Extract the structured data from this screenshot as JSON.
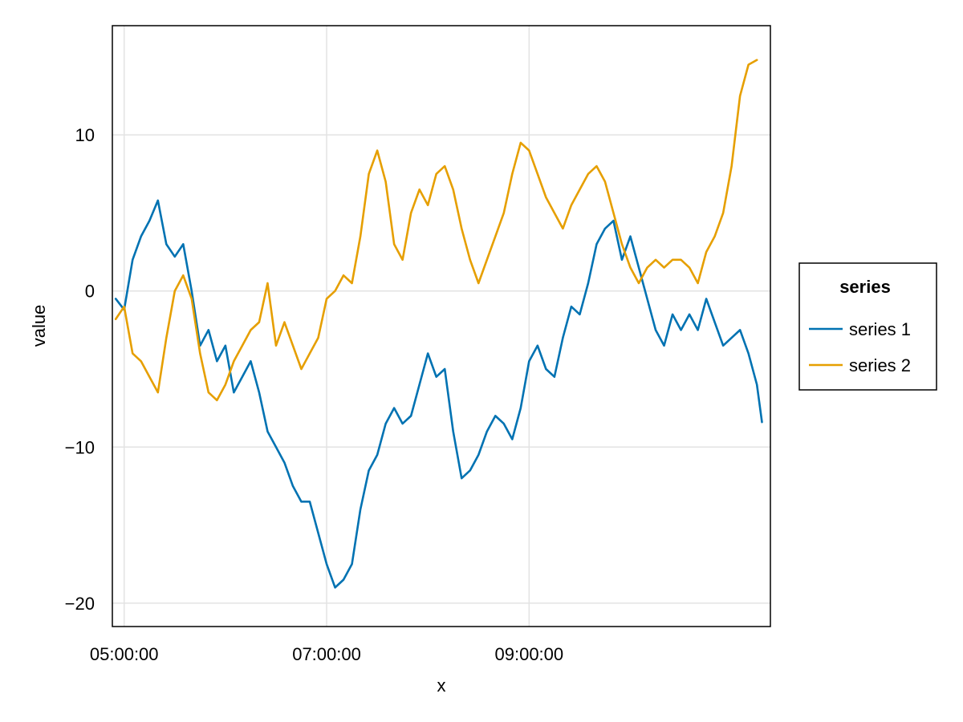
{
  "chart_data": {
    "type": "line",
    "x_type": "time",
    "xlabel": "x",
    "ylabel": "value",
    "xlim": [
      "04:53:00",
      "11:23:00"
    ],
    "ylim": [
      -21.5,
      17
    ],
    "xticks": [
      "05:00:00",
      "07:00:00",
      "09:00:00"
    ],
    "yticks": [
      10,
      0,
      -10,
      -20
    ],
    "ytick_labels": [
      "10",
      "0",
      "−10",
      "−20"
    ],
    "grid": true,
    "legend": {
      "title": "series",
      "position": "right"
    },
    "series": [
      {
        "name": "series 1",
        "color": "#0072b2",
        "points": [
          [
            "04:55:00",
            -0.5
          ],
          [
            "05:00:00",
            -1.2
          ],
          [
            "05:05:00",
            2.0
          ],
          [
            "05:10:00",
            3.5
          ],
          [
            "05:15:00",
            4.5
          ],
          [
            "05:20:00",
            5.8
          ],
          [
            "05:25:00",
            3.0
          ],
          [
            "05:30:00",
            2.2
          ],
          [
            "05:35:00",
            3.0
          ],
          [
            "05:40:00",
            0.0
          ],
          [
            "05:45:00",
            -3.5
          ],
          [
            "05:50:00",
            -2.5
          ],
          [
            "05:55:00",
            -4.5
          ],
          [
            "06:00:00",
            -3.5
          ],
          [
            "06:05:00",
            -6.5
          ],
          [
            "06:10:00",
            -5.5
          ],
          [
            "06:15:00",
            -4.5
          ],
          [
            "06:20:00",
            -6.5
          ],
          [
            "06:25:00",
            -9.0
          ],
          [
            "06:30:00",
            -10.0
          ],
          [
            "06:35:00",
            -11.0
          ],
          [
            "06:40:00",
            -12.5
          ],
          [
            "06:45:00",
            -13.5
          ],
          [
            "06:50:00",
            -13.5
          ],
          [
            "06:55:00",
            -15.5
          ],
          [
            "07:00:00",
            -17.5
          ],
          [
            "07:05:00",
            -19.0
          ],
          [
            "07:10:00",
            -18.5
          ],
          [
            "07:15:00",
            -17.5
          ],
          [
            "07:20:00",
            -14.0
          ],
          [
            "07:25:00",
            -11.5
          ],
          [
            "07:30:00",
            -10.5
          ],
          [
            "07:35:00",
            -8.5
          ],
          [
            "07:40:00",
            -7.5
          ],
          [
            "07:45:00",
            -8.5
          ],
          [
            "07:50:00",
            -8.0
          ],
          [
            "07:55:00",
            -6.0
          ],
          [
            "08:00:00",
            -4.0
          ],
          [
            "08:05:00",
            -5.5
          ],
          [
            "08:10:00",
            -5.0
          ],
          [
            "08:15:00",
            -9.0
          ],
          [
            "08:20:00",
            -12.0
          ],
          [
            "08:25:00",
            -11.5
          ],
          [
            "08:30:00",
            -10.5
          ],
          [
            "08:35:00",
            -9.0
          ],
          [
            "08:40:00",
            -8.0
          ],
          [
            "08:45:00",
            -8.5
          ],
          [
            "08:50:00",
            -9.5
          ],
          [
            "08:55:00",
            -7.5
          ],
          [
            "09:00:00",
            -4.5
          ],
          [
            "09:05:00",
            -3.5
          ],
          [
            "09:10:00",
            -5.0
          ],
          [
            "09:15:00",
            -5.5
          ],
          [
            "09:20:00",
            -3.0
          ],
          [
            "09:25:00",
            -1.0
          ],
          [
            "09:30:00",
            -1.5
          ],
          [
            "09:35:00",
            0.5
          ],
          [
            "09:40:00",
            3.0
          ],
          [
            "09:45:00",
            4.0
          ],
          [
            "09:50:00",
            4.5
          ],
          [
            "09:55:00",
            2.0
          ],
          [
            "10:00:00",
            3.5
          ],
          [
            "10:05:00",
            1.5
          ],
          [
            "10:10:00",
            -0.5
          ],
          [
            "10:15:00",
            -2.5
          ],
          [
            "10:20:00",
            -3.5
          ],
          [
            "10:25:00",
            -1.5
          ],
          [
            "10:30:00",
            -2.5
          ],
          [
            "10:35:00",
            -1.5
          ],
          [
            "10:40:00",
            -2.5
          ],
          [
            "10:45:00",
            -0.5
          ],
          [
            "10:50:00",
            -2.0
          ],
          [
            "10:55:00",
            -3.5
          ],
          [
            "11:00:00",
            -3.0
          ],
          [
            "11:05:00",
            -2.5
          ],
          [
            "11:10:00",
            -4.0
          ],
          [
            "11:15:00",
            -6.0
          ],
          [
            "11:18:00",
            -8.4
          ]
        ]
      },
      {
        "name": "series 2",
        "color": "#e69f00",
        "points": [
          [
            "04:55:00",
            -1.8
          ],
          [
            "05:00:00",
            -1.0
          ],
          [
            "05:05:00",
            -4.0
          ],
          [
            "05:10:00",
            -4.5
          ],
          [
            "05:15:00",
            -5.5
          ],
          [
            "05:20:00",
            -6.5
          ],
          [
            "05:25:00",
            -3.0
          ],
          [
            "05:30:00",
            0.0
          ],
          [
            "05:35:00",
            1.0
          ],
          [
            "05:40:00",
            -0.5
          ],
          [
            "05:45:00",
            -4.0
          ],
          [
            "05:50:00",
            -6.5
          ],
          [
            "05:55:00",
            -7.0
          ],
          [
            "06:00:00",
            -6.0
          ],
          [
            "06:05:00",
            -4.5
          ],
          [
            "06:10:00",
            -3.5
          ],
          [
            "06:15:00",
            -2.5
          ],
          [
            "06:20:00",
            -2.0
          ],
          [
            "06:25:00",
            0.5
          ],
          [
            "06:30:00",
            -3.5
          ],
          [
            "06:35:00",
            -2.0
          ],
          [
            "06:40:00",
            -3.5
          ],
          [
            "06:45:00",
            -5.0
          ],
          [
            "06:50:00",
            -4.0
          ],
          [
            "06:55:00",
            -3.0
          ],
          [
            "07:00:00",
            -0.5
          ],
          [
            "07:05:00",
            0.0
          ],
          [
            "07:10:00",
            1.0
          ],
          [
            "07:15:00",
            0.5
          ],
          [
            "07:20:00",
            3.5
          ],
          [
            "07:25:00",
            7.5
          ],
          [
            "07:30:00",
            9.0
          ],
          [
            "07:35:00",
            7.0
          ],
          [
            "07:40:00",
            3.0
          ],
          [
            "07:45:00",
            2.0
          ],
          [
            "07:50:00",
            5.0
          ],
          [
            "07:55:00",
            6.5
          ],
          [
            "08:00:00",
            5.5
          ],
          [
            "08:05:00",
            7.5
          ],
          [
            "08:10:00",
            8.0
          ],
          [
            "08:15:00",
            6.5
          ],
          [
            "08:20:00",
            4.0
          ],
          [
            "08:25:00",
            2.0
          ],
          [
            "08:30:00",
            0.5
          ],
          [
            "08:35:00",
            2.0
          ],
          [
            "08:40:00",
            3.5
          ],
          [
            "08:45:00",
            5.0
          ],
          [
            "08:50:00",
            7.5
          ],
          [
            "08:55:00",
            9.5
          ],
          [
            "09:00:00",
            9.0
          ],
          [
            "09:05:00",
            7.5
          ],
          [
            "09:10:00",
            6.0
          ],
          [
            "09:15:00",
            5.0
          ],
          [
            "09:20:00",
            4.0
          ],
          [
            "09:25:00",
            5.5
          ],
          [
            "09:30:00",
            6.5
          ],
          [
            "09:35:00",
            7.5
          ],
          [
            "09:40:00",
            8.0
          ],
          [
            "09:45:00",
            7.0
          ],
          [
            "09:50:00",
            5.0
          ],
          [
            "09:55:00",
            3.0
          ],
          [
            "10:00:00",
            1.5
          ],
          [
            "10:05:00",
            0.5
          ],
          [
            "10:10:00",
            1.5
          ],
          [
            "10:15:00",
            2.0
          ],
          [
            "10:20:00",
            1.5
          ],
          [
            "10:25:00",
            2.0
          ],
          [
            "10:30:00",
            2.0
          ],
          [
            "10:35:00",
            1.5
          ],
          [
            "10:40:00",
            0.5
          ],
          [
            "10:45:00",
            2.5
          ],
          [
            "10:50:00",
            3.5
          ],
          [
            "10:55:00",
            5.0
          ],
          [
            "11:00:00",
            8.0
          ],
          [
            "11:05:00",
            12.5
          ],
          [
            "11:10:00",
            14.5
          ],
          [
            "11:15:00",
            14.8
          ]
        ]
      }
    ]
  }
}
